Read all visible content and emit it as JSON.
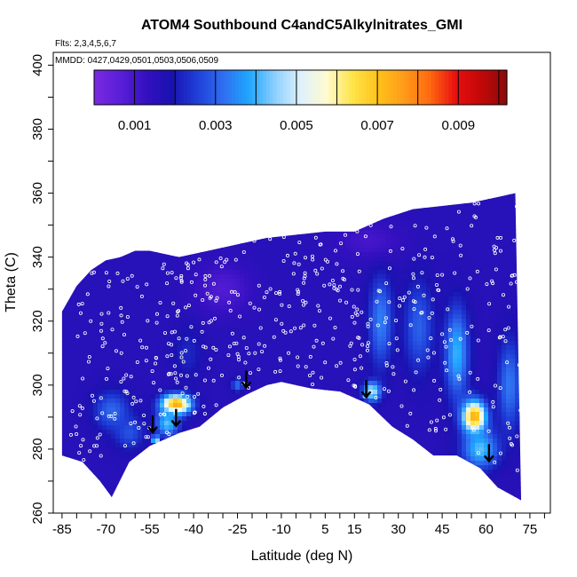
{
  "chart_data": {
    "type": "heatmap",
    "title": "ATOM4 Southbound C4andC5Alkylnitrates_GMI",
    "flights_label": "Flts: 2,3,4,5,6,7",
    "mmdd_label": "MMDD: 0427,0429,0501,0503,0506,0509",
    "xlabel": "Latitude (deg N)",
    "ylabel": "Theta (C)",
    "xlim": [
      -88,
      82
    ],
    "ylim": [
      260,
      404
    ],
    "x_tick_labels": [
      "-85",
      "-70",
      "-55",
      "-40",
      "-25",
      "-10",
      "5",
      "15",
      "30",
      "45",
      "60",
      "75"
    ],
    "y_tick_labels": [
      "260",
      "280",
      "300",
      "320",
      "340",
      "360",
      "380",
      "400"
    ],
    "colorbar": {
      "min": 0.0,
      "max": 0.0102,
      "tick_labels": [
        "0.001",
        "0.003",
        "0.005",
        "0.007",
        "0.009"
      ],
      "tick_values": [
        0.001,
        0.003,
        0.005,
        0.007,
        0.009
      ],
      "colors": [
        "#7b2ae0",
        "#5a1fd8",
        "#3410c0",
        "#1a12b0",
        "#1f3fd8",
        "#2f6ef0",
        "#1fa6ff",
        "#8ccfff",
        "#dff1ff",
        "#fffbd0",
        "#ffe54a",
        "#ffc21a",
        "#ff9b1a",
        "#ff6a10",
        "#e81010",
        "#c20808",
        "#8a0a0a"
      ]
    },
    "domain_top": [
      [
        -85,
        323
      ],
      [
        -80,
        331
      ],
      [
        -75,
        336
      ],
      [
        -70,
        339
      ],
      [
        -65,
        340
      ],
      [
        -60,
        342
      ],
      [
        -55,
        342
      ],
      [
        -45,
        340
      ],
      [
        -35,
        342
      ],
      [
        -25,
        344
      ],
      [
        -15,
        346
      ],
      [
        -5,
        347
      ],
      [
        5,
        348
      ],
      [
        15,
        348
      ],
      [
        25,
        352
      ],
      [
        35,
        355
      ],
      [
        45,
        356
      ],
      [
        55,
        357
      ],
      [
        65,
        359
      ],
      [
        70,
        360
      ]
    ],
    "domain_bottom": [
      [
        -85,
        278
      ],
      [
        -78,
        276
      ],
      [
        -72,
        270
      ],
      [
        -68,
        265
      ],
      [
        -62,
        276
      ],
      [
        -55,
        281
      ],
      [
        -50,
        283
      ],
      [
        -45,
        285
      ],
      [
        -38,
        287
      ],
      [
        -30,
        293
      ],
      [
        -22,
        297
      ],
      [
        -15,
        300
      ],
      [
        -10,
        301
      ],
      [
        -5,
        300
      ],
      [
        0,
        299
      ],
      [
        10,
        298
      ],
      [
        20,
        294
      ],
      [
        28,
        287
      ],
      [
        35,
        283
      ],
      [
        42,
        278
      ],
      [
        50,
        278
      ],
      [
        58,
        274
      ],
      [
        64,
        268
      ],
      [
        70,
        265
      ],
      [
        72,
        264
      ]
    ],
    "background_value": 0.0016,
    "features": [
      {
        "lat": -68,
        "theta": 292,
        "value": 0.0031,
        "radius_lat": 6,
        "radius_theta": 6
      },
      {
        "lat": -62,
        "theta": 285,
        "value": 0.0028,
        "radius_lat": 5,
        "radius_theta": 5
      },
      {
        "lat": -46,
        "theta": 294,
        "value": 0.0078,
        "radius_lat": 5,
        "radius_theta": 3
      },
      {
        "lat": -49,
        "theta": 288,
        "value": 0.0042,
        "radius_lat": 4,
        "radius_theta": 4
      },
      {
        "lat": -53,
        "theta": 283,
        "value": 0.0066,
        "radius_lat": 1,
        "radius_theta": 1
      },
      {
        "lat": -42,
        "theta": 310,
        "value": 0.0022,
        "radius_lat": 5,
        "radius_theta": 8
      },
      {
        "lat": -25,
        "theta": 300,
        "value": 0.0032,
        "radius_lat": 2,
        "radius_theta": 2
      },
      {
        "lat": 21,
        "theta": 298,
        "value": 0.005,
        "radius_lat": 3,
        "radius_theta": 3
      },
      {
        "lat": 24,
        "theta": 320,
        "value": 0.0034,
        "radius_lat": 4,
        "radius_theta": 14
      },
      {
        "lat": 37,
        "theta": 318,
        "value": 0.003,
        "radius_lat": 5,
        "radius_theta": 14
      },
      {
        "lat": 50,
        "theta": 310,
        "value": 0.004,
        "radius_lat": 4,
        "radius_theta": 14
      },
      {
        "lat": 56,
        "theta": 290,
        "value": 0.0076,
        "radius_lat": 4,
        "radius_theta": 5
      },
      {
        "lat": 58,
        "theta": 280,
        "value": 0.0042,
        "radius_lat": 6,
        "radius_theta": 6
      },
      {
        "lat": 68,
        "theta": 300,
        "value": 0.0033,
        "radius_lat": 4,
        "radius_theta": 14
      },
      {
        "lat": -30,
        "theta": 330,
        "value": 0.0008,
        "radius_lat": 10,
        "radius_theta": 8
      },
      {
        "lat": 20,
        "theta": 345,
        "value": 0.001,
        "radius_lat": 12,
        "radius_theta": 6
      }
    ],
    "arrows": [
      {
        "lat": -54,
        "theta": 285
      },
      {
        "lat": -46,
        "theta": 287
      },
      {
        "lat": -22,
        "theta": 299
      },
      {
        "lat": 19,
        "theta": 296
      },
      {
        "lat": 61,
        "theta": 276
      }
    ],
    "sample_points": {
      "seed": 7,
      "tracks": [
        {
          "lat_range": [
            -82,
            -30
          ],
          "theta_range": [
            276,
            340
          ],
          "count": 230
        },
        {
          "lat_range": [
            -30,
            15
          ],
          "theta_range": [
            298,
            347
          ],
          "count": 140
        },
        {
          "lat_range": [
            15,
            45
          ],
          "theta_range": [
            285,
            352
          ],
          "count": 110
        },
        {
          "lat_range": [
            45,
            72
          ],
          "theta_range": [
            270,
            358
          ],
          "count": 90
        }
      ]
    }
  }
}
